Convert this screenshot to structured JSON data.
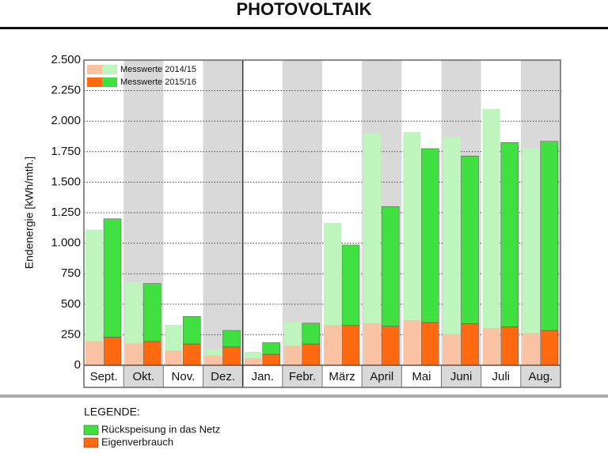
{
  "chart_data": {
    "type": "stacked_grouped_bar",
    "title": "PHOTOVOLTAIK",
    "y_label": "Endenergie [kWh/mth.]",
    "categories": [
      "Sept.",
      "Okt.",
      "Nov.",
      "Dez.",
      "Jan.",
      "Febr.",
      "März",
      "April",
      "Mai",
      "Juni",
      "Juli",
      "Aug."
    ],
    "ylim": [
      0,
      2500
    ],
    "yticks": [
      0,
      250,
      500,
      750,
      {
        "value": 1000,
        "label": "1.000"
      },
      {
        "value": 1250,
        "label": "1.250"
      },
      {
        "value": 1500,
        "label": "1.500"
      },
      {
        "value": 1750,
        "label": "1.750"
      },
      {
        "value": 2000,
        "label": "2.000"
      },
      {
        "value": 2250,
        "label": "2.250"
      },
      {
        "value": 2500,
        "label": "2.500"
      }
    ],
    "grid": true,
    "series": [
      {
        "name": "Messwerte 2014/15",
        "stacks": [
          {
            "color": "#f9c3a3",
            "values": [
              200,
              180,
              120,
              80,
              60,
              160,
              330,
              345,
              370,
              255,
              305,
              265
            ]
          },
          {
            "color": "#bdf5bd",
            "values": [
              910,
              500,
              210,
              50,
              50,
              190,
              835,
              1555,
              1540,
              1615,
              1795,
              1515
            ]
          }
        ]
      },
      {
        "name": "Messwerte 2015/16",
        "stacks": [
          {
            "color": "#ff6a10",
            "values": [
              230,
              195,
              175,
              150,
              90,
              175,
              325,
              320,
              350,
              340,
              315,
              285
            ]
          },
          {
            "color": "#40e040",
            "values": [
              970,
              475,
              225,
              135,
              95,
              170,
              660,
              980,
              1425,
              1375,
              1510,
              1550
            ]
          }
        ]
      }
    ],
    "legend": {
      "title": "LEGENDE:",
      "items": [
        "Rückspeisung in das Netz",
        "Eigenverbrauch"
      ]
    }
  }
}
